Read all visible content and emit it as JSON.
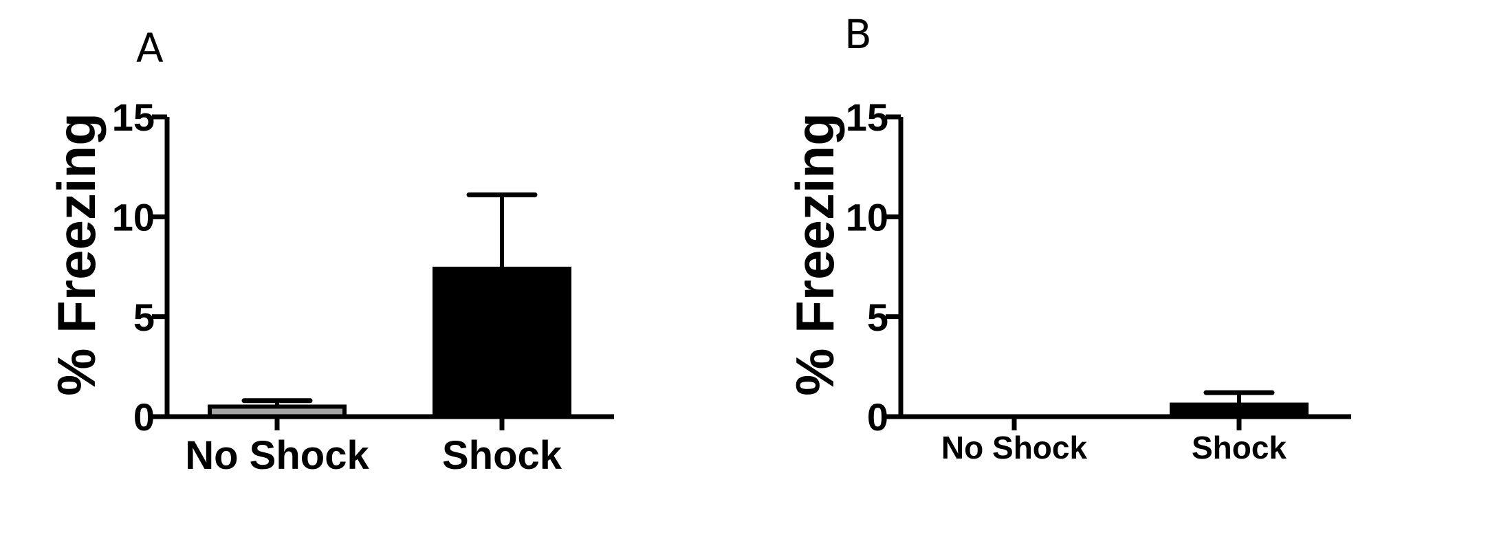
{
  "chart_data": [
    {
      "type": "bar",
      "panel_label": "A",
      "ylabel": "% Freezing",
      "xlabel": "",
      "ylim": [
        0,
        15
      ],
      "yticks": [
        "0",
        "5",
        "10",
        "15"
      ],
      "categories": [
        "No Shock",
        "Shock"
      ],
      "values": [
        0.5,
        7.4
      ],
      "errors": [
        0.3,
        3.7
      ],
      "colors": [
        "#a6a6a6",
        "#000000"
      ]
    },
    {
      "type": "bar",
      "panel_label": "B",
      "ylabel": "% Freezing",
      "xlabel": "",
      "ylim": [
        0,
        15
      ],
      "yticks": [
        "0",
        "5",
        "10",
        "15"
      ],
      "categories": [
        "No Shock",
        "Shock"
      ],
      "values": [
        0,
        0.6
      ],
      "errors": [
        0,
        0.6
      ],
      "colors": [
        "#a6a6a6",
        "#000000"
      ]
    }
  ]
}
